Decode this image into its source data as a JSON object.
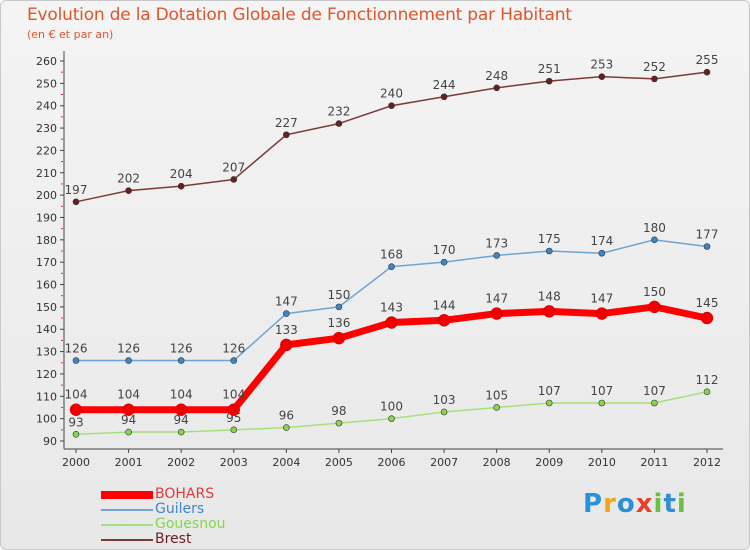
{
  "header": {
    "title": "Evolution de la Dotation Globale de Fonctionnement par Habitant",
    "subtitle": "(en € et par an)"
  },
  "chart_data": {
    "type": "line",
    "title": "Evolution de la Dotation Globale de Fonctionnement par Habitant",
    "subtitle": "(en € et par an)",
    "xlabel": "",
    "ylabel": "",
    "ylim": [
      90,
      260
    ],
    "y_ticks": [
      90,
      100,
      110,
      120,
      130,
      140,
      150,
      160,
      170,
      180,
      190,
      200,
      210,
      220,
      230,
      240,
      250,
      260
    ],
    "grid": false,
    "legend_position": "bottom-left",
    "categories": [
      "2000",
      "2001",
      "2002",
      "2003",
      "2004",
      "2005",
      "2006",
      "2007",
      "2008",
      "2009",
      "2010",
      "2011",
      "2012"
    ],
    "series": [
      {
        "name": "BOHARS",
        "color": "#ff0000",
        "marker_color": "#ee0000",
        "emphasis": true,
        "values": [
          104,
          104,
          104,
          104,
          133,
          136,
          143,
          144,
          147,
          148,
          147,
          150,
          145
        ]
      },
      {
        "name": "Guilers",
        "color": "#6fa3d4",
        "marker_color": "#3f86c6",
        "emphasis": false,
        "values": [
          126,
          126,
          126,
          126,
          147,
          150,
          168,
          170,
          173,
          175,
          174,
          180,
          177
        ]
      },
      {
        "name": "Gouesnou",
        "color": "#a6e07a",
        "marker_color": "#86d64b",
        "emphasis": false,
        "values": [
          93,
          94,
          94,
          95,
          96,
          98,
          100,
          103,
          105,
          107,
          107,
          107,
          112
        ]
      },
      {
        "name": "Brest",
        "color": "#7a3a3a",
        "marker_color": "#6b1f1f",
        "emphasis": false,
        "values": [
          197,
          202,
          204,
          207,
          227,
          232,
          240,
          244,
          248,
          251,
          253,
          252,
          255
        ]
      }
    ]
  },
  "logo": {
    "text": "Proxiti",
    "letters": [
      {
        "ch": "P",
        "color": "#2d8fd5"
      },
      {
        "ch": "r",
        "color": "#f5a31a"
      },
      {
        "ch": "o",
        "color": "#2d8fd5"
      },
      {
        "ch": "x",
        "color": "#e8402a"
      },
      {
        "ch": "i",
        "color": "#6cbe45"
      },
      {
        "ch": "t",
        "color": "#2d8fd5"
      },
      {
        "ch": "i",
        "color": "#6cbe45"
      }
    ]
  }
}
